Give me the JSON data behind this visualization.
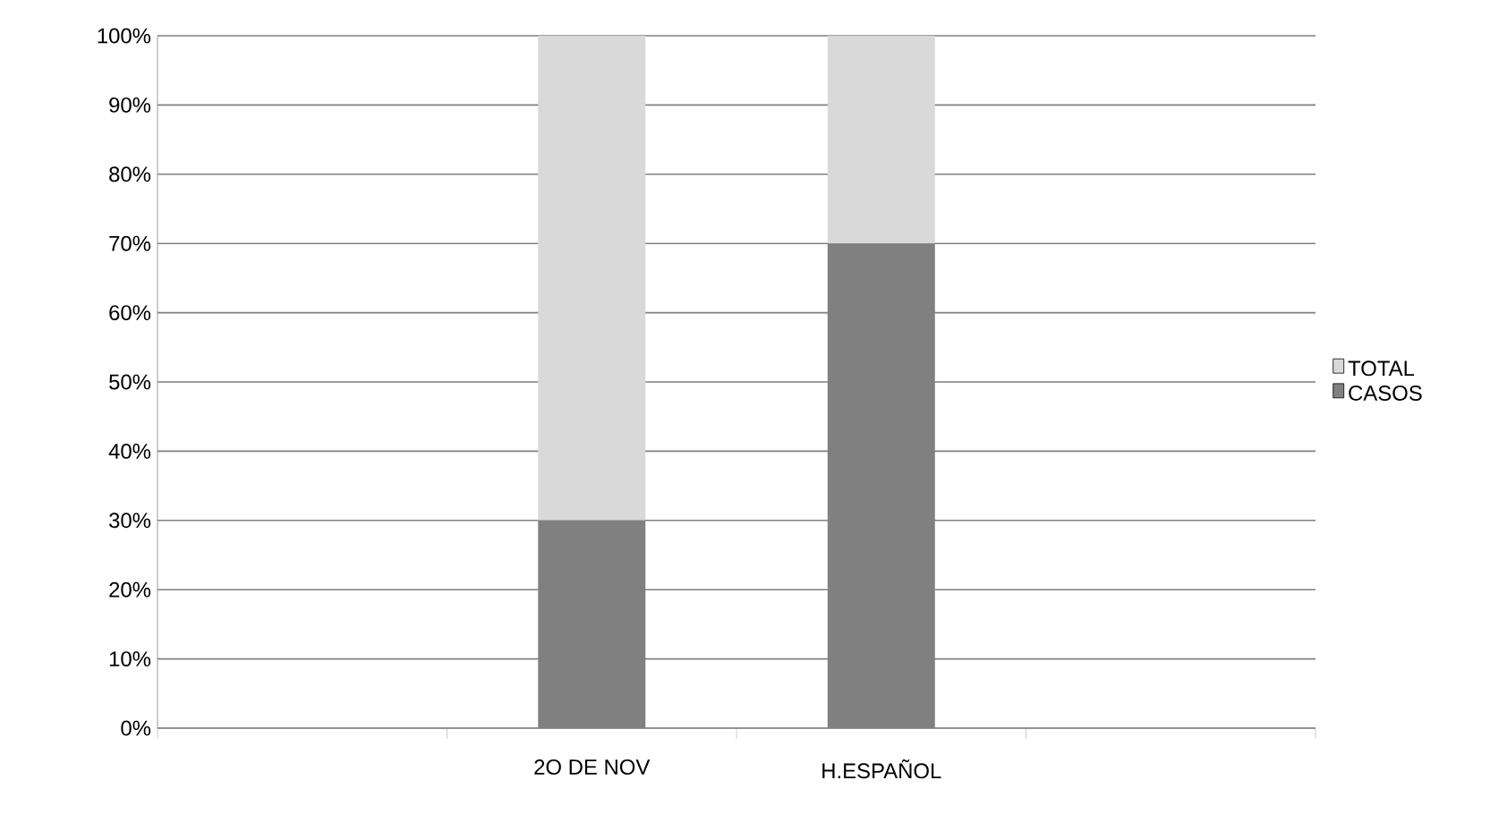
{
  "chart_data": {
    "type": "bar",
    "stacked": true,
    "categories": [
      null,
      "2O DE NOV",
      "H.ESPAÑOL",
      null
    ],
    "series": [
      {
        "name": "CASOS",
        "color": "#808080",
        "values": [
          null,
          30,
          70,
          null
        ]
      },
      {
        "name": "TOTAL",
        "color": "#d9d9d9",
        "values": [
          null,
          70,
          30,
          null
        ]
      }
    ],
    "ylim": [
      0,
      100
    ],
    "yticks": [
      {
        "value": 0,
        "label": "0%"
      },
      {
        "value": 10,
        "label": "10%"
      },
      {
        "value": 20,
        "label": "20%"
      },
      {
        "value": 30,
        "label": "30%"
      },
      {
        "value": 40,
        "label": "40%"
      },
      {
        "value": 50,
        "label": "50%"
      },
      {
        "value": 60,
        "label": "60%"
      },
      {
        "value": 70,
        "label": "70%"
      },
      {
        "value": 80,
        "label": "80%"
      },
      {
        "value": 90,
        "label": "90%"
      },
      {
        "value": 100,
        "label": "100%"
      }
    ],
    "grid": "y",
    "legend": "right"
  }
}
